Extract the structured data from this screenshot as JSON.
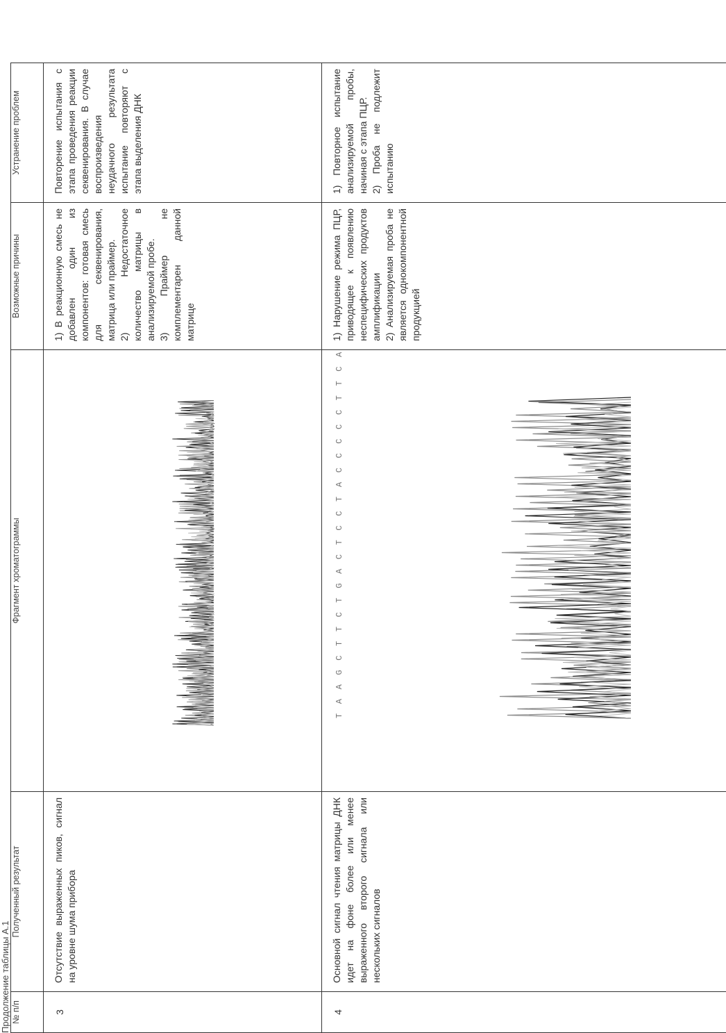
{
  "continuation_note": "Продолжение таблицы А.1",
  "headers": {
    "num": "№ п/п",
    "result": "Полученный результат",
    "chromatogram": "Фрагмент хроматограммы",
    "causes": "Возможные причины",
    "fix": "Устранение проблем"
  },
  "rows": [
    {
      "num": "3",
      "result": "Отсутствие выраженных пиков, сигнал на уровне шума прибора",
      "causes": "1) В реакционную смесь не добавлен один из компонентов: готовая смесь для секвенирования, матрица или праймер.\n2) Недостаточное количество матрицы в анализируемой пробе.\n3) Праймер не комплементарен данной матрице",
      "fix": "Повторение испытания с этапа проведения реакции секвенирования. В случае воспроизведения неудачного результата испытание повторяют с этапа выделения ДНК"
    },
    {
      "num": "4",
      "result": "Основной сигнал чтения матрицы ДНК идет на фоне более или менее выраженного второго сигнала или нескольких сигналов",
      "bases": "T A A G C T T C T G A C T C C T A C C C C C T T C A",
      "causes": "1) Нарушение режима ПЦР, приводящее к появлению неспецифических продуктов амплификации\n2) Анализируемая проба не является однокомпонентной продукцией",
      "fix": "1) Повторное испытание анализируемой пробы, начиная с этапа ПЦР.\n2) Проба не подлежит испытанию"
    }
  ],
  "colors": {
    "trace_dark": "#222222",
    "trace_gray": "#8a8a8a",
    "trace_light": "#b5b5b5"
  }
}
